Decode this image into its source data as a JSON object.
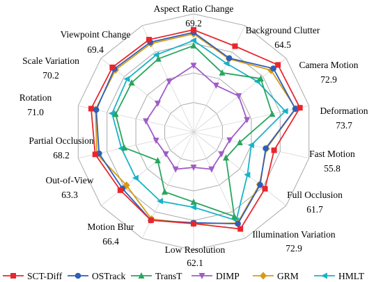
{
  "chart_data": {
    "type": "radar",
    "grid": true,
    "rmin": 0,
    "rmax": 80,
    "grid_rings": [
      20,
      40,
      60,
      80
    ],
    "legend_position": "bottom",
    "axes": [
      {
        "name": "Aspect Ratio Change",
        "value_label": "69.2"
      },
      {
        "name": "Background Clutter",
        "value_label": "64.5"
      },
      {
        "name": "Camera Motion",
        "value_label": "72.9"
      },
      {
        "name": "Deformation",
        "value_label": "73.7"
      },
      {
        "name": "Fast Motion",
        "value_label": "55.8"
      },
      {
        "name": "Full Occlusion",
        "value_label": "61.7"
      },
      {
        "name": "Illumination Variation",
        "value_label": "72.9"
      },
      {
        "name": "Low Resolution",
        "value_label": "62.1"
      },
      {
        "name": "Motion Blur",
        "value_label": "66.4"
      },
      {
        "name": "Out-of-View",
        "value_label": "63.3"
      },
      {
        "name": "Partial Occlusion",
        "value_label": "68.2"
      },
      {
        "name": "Rotation",
        "value_label": "71.0"
      },
      {
        "name": "Scale Variation",
        "value_label": "70.2"
      },
      {
        "name": "Viewpoint Change",
        "value_label": "69.4"
      }
    ],
    "series": [
      {
        "name": "SCT-Diff",
        "color": "#e8262c",
        "marker": "square",
        "values": [
          69.2,
          64.5,
          72.9,
          73.7,
          55.8,
          61.7,
          72.9,
          62.1,
          66.4,
          63.3,
          68.2,
          71.0,
          70.2,
          69.4
        ]
      },
      {
        "name": "OSTrack",
        "color": "#2e5fb8",
        "marker": "circle",
        "values": [
          67.5,
          55.5,
          69.0,
          70.5,
          50.0,
          57.5,
          69.0,
          61.5,
          66.4,
          61.5,
          65.5,
          67.5,
          68.5,
          67.5
        ]
      },
      {
        "name": "TransT",
        "color": "#28a55e",
        "marker": "triangle-up",
        "values": [
          58.5,
          44.5,
          58.0,
          54.5,
          32.0,
          28.0,
          63.5,
          47.5,
          45.0,
          31.0,
          48.0,
          54.0,
          53.5,
          55.0
        ]
      },
      {
        "name": "DIMP",
        "color": "#a05cc8",
        "marker": "triangle-down",
        "values": [
          45.0,
          35.0,
          39.0,
          37.0,
          25.0,
          24.0,
          28.0,
          24.0,
          28.0,
          24.0,
          26.0,
          33.0,
          31.0,
          38.0
        ]
      },
      {
        "name": "GRM",
        "color": "#d69a14",
        "marker": "diamond",
        "values": [
          66.5,
          55.0,
          67.0,
          70.8,
          50.5,
          57.0,
          68.5,
          62.1,
          65.5,
          58.0,
          67.0,
          68.0,
          67.5,
          66.5
        ]
      },
      {
        "name": "HMLT",
        "color": "#18b2c6",
        "marker": "triangle-left",
        "values": [
          62.0,
          51.5,
          55.0,
          63.5,
          40.0,
          46.5,
          66.5,
          51.0,
          52.0,
          50.0,
          50.0,
          56.5,
          57.5,
          58.0
        ]
      }
    ]
  }
}
